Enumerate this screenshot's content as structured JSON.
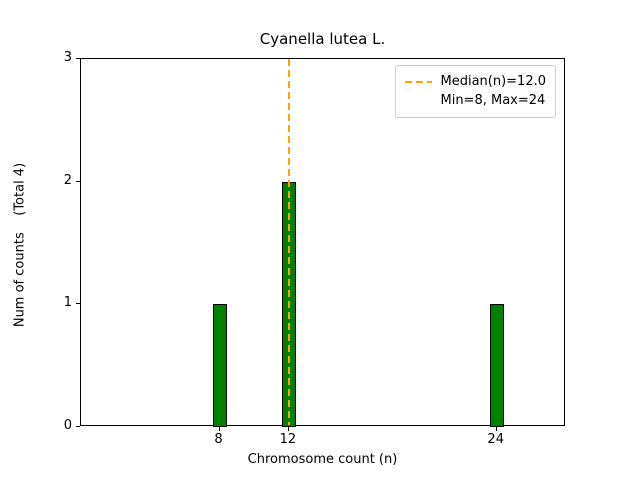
{
  "chart_data": {
    "type": "bar",
    "title": "Cyanella lutea L.",
    "xlabel": "Chromosome count (n)",
    "ylabel": "Num of counts    (Total 4)",
    "categories": [
      8,
      12,
      24
    ],
    "values": [
      1,
      2,
      1
    ],
    "xlim": [
      0,
      28
    ],
    "ylim": [
      0,
      3
    ],
    "yticks": [
      0,
      1,
      2,
      3
    ],
    "xtick_labels": [
      "8",
      "12",
      "24"
    ],
    "ytick_labels": [
      "0",
      "1",
      "2",
      "3"
    ],
    "bar_color": "#008000",
    "bar_edge_color": "#000000",
    "grid": false,
    "median_line": {
      "x": 12,
      "color": "#ffa500",
      "style": "dashed"
    },
    "legend": {
      "position": "upper right",
      "entries": [
        "Median(n)=12.0",
        "Min=8, Max=24"
      ]
    }
  }
}
